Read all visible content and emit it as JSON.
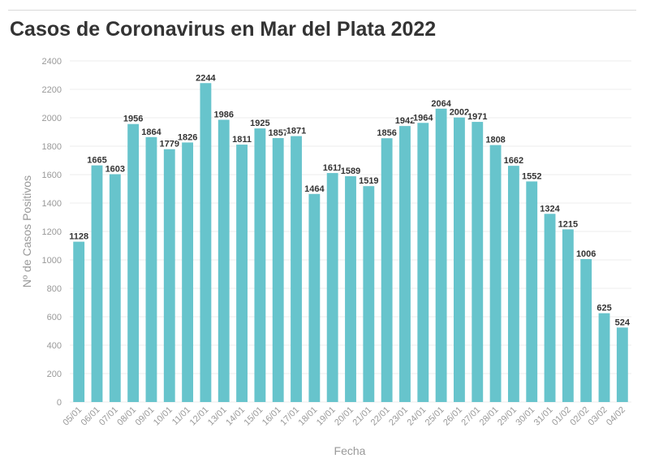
{
  "chart_data": {
    "type": "bar",
    "title": "Casos de Coronavirus en Mar del Plata 2022",
    "xlabel": "Fecha",
    "ylabel": "Nº de Casos Positivos",
    "ylim": [
      0,
      2400
    ],
    "yticks": [
      0,
      200,
      400,
      600,
      800,
      1000,
      1200,
      1400,
      1600,
      1800,
      2000,
      2200,
      2400
    ],
    "grid": true,
    "bar_color": "#67c4cc",
    "categories": [
      "05/01",
      "06/01",
      "07/01",
      "08/01",
      "09/01",
      "10/01",
      "11/01",
      "12/01",
      "13/01",
      "14/01",
      "15/01",
      "16/01",
      "17/01",
      "18/01",
      "19/01",
      "20/01",
      "21/01",
      "22/01",
      "23/01",
      "24/01",
      "25/01",
      "26/01",
      "27/01",
      "28/01",
      "29/01",
      "30/01",
      "31/01",
      "01/02",
      "02/02",
      "03/02",
      "04/02"
    ],
    "values": [
      1128,
      1665,
      1603,
      1956,
      1864,
      1779,
      1826,
      2244,
      1986,
      1811,
      1925,
      1857,
      1871,
      1464,
      1611,
      1589,
      1519,
      1856,
      1942,
      1964,
      2064,
      2002,
      1971,
      1808,
      1662,
      1552,
      1324,
      1215,
      1006,
      625,
      524
    ]
  }
}
